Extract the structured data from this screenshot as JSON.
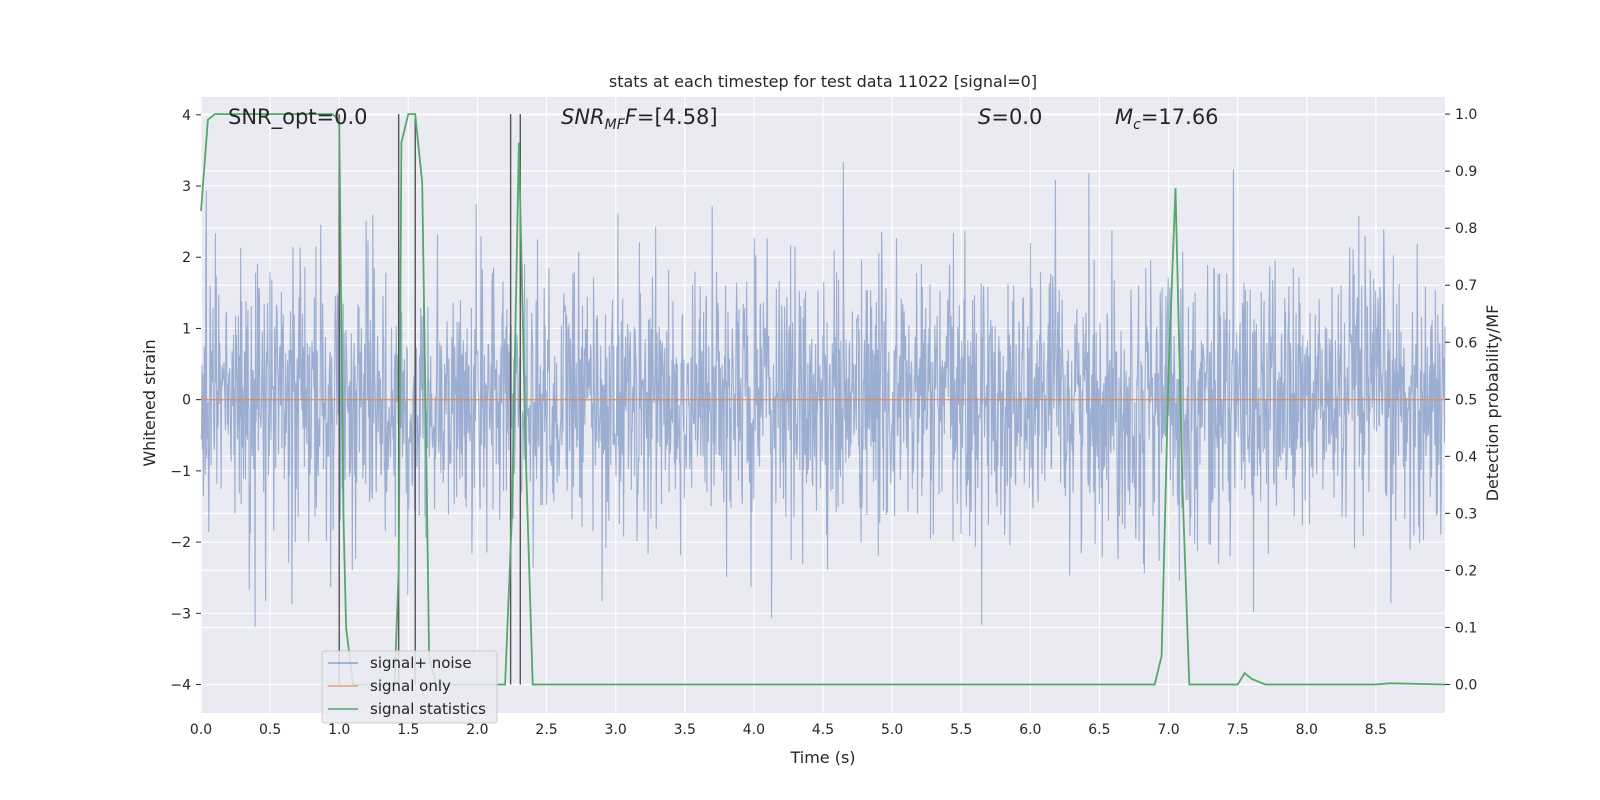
{
  "chart_data": {
    "type": "line",
    "title": "stats at each timestep for test data 11022 [signal=0]",
    "xlabel": "Time (s)",
    "ylabel_left": "Whitened strain",
    "ylabel_right": "Detection probability/MF",
    "xlim": [
      0.0,
      9.0
    ],
    "ylim_left": [
      -4.4,
      4.25
    ],
    "ylim_right": [
      -0.05,
      1.03
    ],
    "x_ticks": [
      "0.0",
      "0.5",
      "1.0",
      "1.5",
      "2.0",
      "2.5",
      "3.0",
      "3.5",
      "4.0",
      "4.5",
      "5.0",
      "5.5",
      "6.0",
      "6.5",
      "7.0",
      "7.5",
      "8.0",
      "8.5"
    ],
    "y_ticks_left": [
      "4",
      "3",
      "2",
      "1",
      "0",
      "−1",
      "−2",
      "−3",
      "−4"
    ],
    "y_ticks_right": [
      "1.0",
      "0.9",
      "0.8",
      "0.7",
      "0.6",
      "0.5",
      "0.4",
      "0.3",
      "0.2",
      "0.1",
      "0.0"
    ],
    "grid": true,
    "legend_position": "lower-left",
    "annotations": {
      "snr_opt": "SNR_opt=0.0",
      "snr_mf_main": "SNR",
      "snr_mf_sub": "MF",
      "snr_mf_value": "=[4.58]",
      "s_main": "S",
      "s_value": "=0.0",
      "mc_main": "M",
      "mc_sub": "c",
      "mc_value": "=17.66"
    },
    "series": [
      {
        "name": "signal+ noise",
        "color": "#4c72b0",
        "style": "dense noise, approx. Gaussian, std ~0.9, peaks to about ±3.5",
        "x_range": [
          0.0,
          9.0
        ],
        "typical_abs_max": 3.5
      },
      {
        "name": "signal only",
        "color": "#dd8452",
        "x": [
          0.0,
          9.0
        ],
        "y": [
          0.0,
          0.0
        ]
      },
      {
        "name": "signal statistics",
        "color": "#55a868",
        "axis": "right",
        "x": [
          0.0,
          0.05,
          0.1,
          0.2,
          0.5,
          0.9,
          0.95,
          1.0,
          1.03,
          1.05,
          1.1,
          1.2,
          1.3,
          1.4,
          1.43,
          1.45,
          1.5,
          1.55,
          1.6,
          1.63,
          1.65,
          1.7,
          1.8,
          2.0,
          2.2,
          2.25,
          2.3,
          2.35,
          2.4,
          2.5,
          3.0,
          4.0,
          5.0,
          6.0,
          6.9,
          6.95,
          7.0,
          7.05,
          7.1,
          7.15,
          7.5,
          7.55,
          7.6,
          7.7,
          8.5,
          8.6,
          9.0
        ],
        "y": [
          0.83,
          0.99,
          1.0,
          1.0,
          1.0,
          1.0,
          1.0,
          0.99,
          0.3,
          0.1,
          0.0,
          0.0,
          0.0,
          0.0,
          0.2,
          0.95,
          1.0,
          1.0,
          0.88,
          0.4,
          0.05,
          0.0,
          0.0,
          0.0,
          0.0,
          0.3,
          0.95,
          0.4,
          0.0,
          0.0,
          0.0,
          0.0,
          0.0,
          0.0,
          0.0,
          0.05,
          0.55,
          0.87,
          0.35,
          0.0,
          0.0,
          0.02,
          0.01,
          0.0,
          0.0,
          0.002,
          0.0
        ]
      }
    ],
    "vertical_markers": {
      "color": "#555555",
      "x": [
        1.0,
        1.43,
        1.55,
        2.24,
        2.31
      ]
    }
  }
}
